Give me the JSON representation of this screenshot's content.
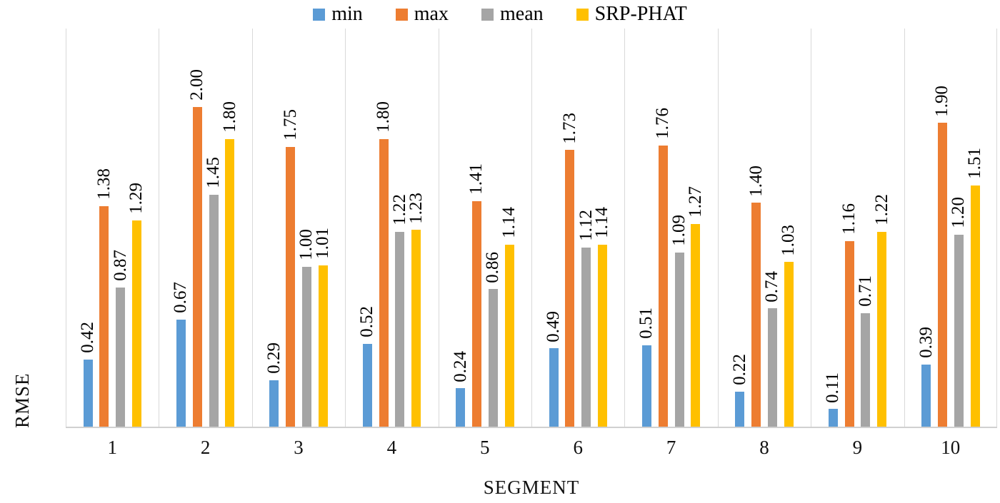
{
  "chart_data": {
    "type": "bar",
    "title": "",
    "xlabel": "SEGMENT",
    "ylabel": "RMSE",
    "categories": [
      "1",
      "2",
      "3",
      "4",
      "5",
      "6",
      "7",
      "8",
      "9",
      "10"
    ],
    "series": [
      {
        "name": "min",
        "color": "#5b9bd5",
        "values": [
          0.42,
          0.67,
          0.29,
          0.52,
          0.24,
          0.49,
          0.51,
          0.22,
          0.11,
          0.39
        ]
      },
      {
        "name": "max",
        "color": "#ed7d31",
        "values": [
          1.38,
          2.0,
          1.75,
          1.8,
          1.41,
          1.73,
          1.76,
          1.4,
          1.16,
          1.9
        ]
      },
      {
        "name": "mean",
        "color": "#a5a5a5",
        "values": [
          0.87,
          1.45,
          1.0,
          1.22,
          0.86,
          1.12,
          1.09,
          0.74,
          0.71,
          1.2
        ]
      },
      {
        "name": "SRP-PHAT",
        "color": "#ffc000",
        "values": [
          1.29,
          1.8,
          1.01,
          1.23,
          1.14,
          1.14,
          1.27,
          1.03,
          1.22,
          1.51
        ]
      }
    ],
    "ylim": [
      0,
      2.5
    ],
    "grid": "vertical-only",
    "legend_position": "top",
    "value_labels": "rotated-90-two-decimals",
    "gridline_color": "#d9d9d9",
    "axis_line_color": "#d0d0d0"
  }
}
